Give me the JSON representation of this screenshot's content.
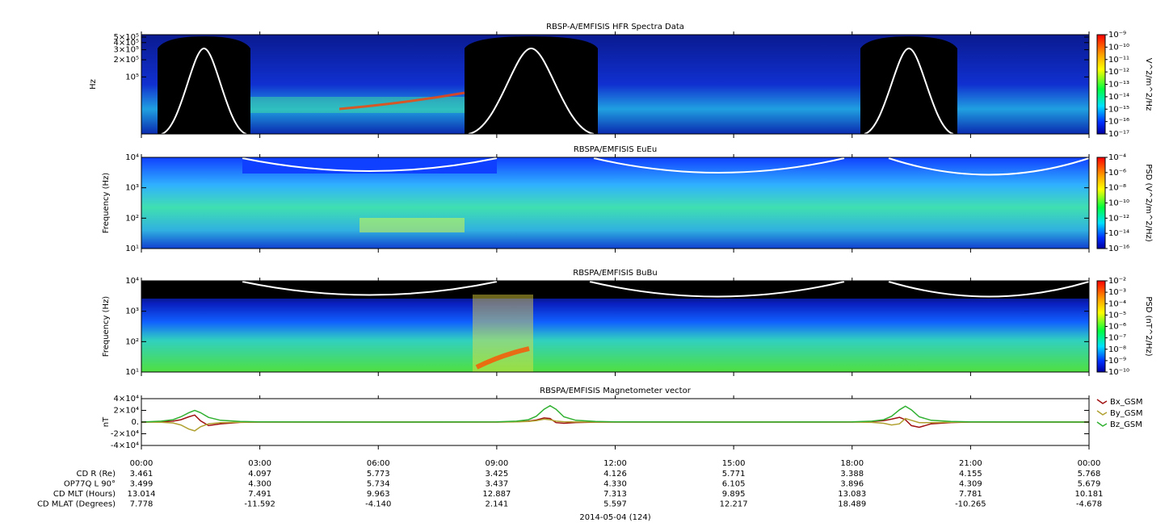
{
  "chart_data": [
    {
      "type": "spectrogram",
      "title": "RBSP-A/EMFISIS  HFR Spectra Data",
      "ylabel": "Hz",
      "log_y": true,
      "ylim": [
        10000,
        550000
      ],
      "yticks": [
        {
          "value": 100000,
          "label": "10⁵"
        },
        {
          "value": 200000,
          "label": "2×10⁵"
        },
        {
          "value": 300000,
          "label": "3×10⁵"
        },
        {
          "value": 400000,
          "label": "4×10⁵"
        },
        {
          "value": 500000,
          "label": "5×10⁵"
        }
      ],
      "colorbar": {
        "label": "V^2/m^2/Hz",
        "log": true,
        "lim": [
          1e-17,
          1e-09
        ],
        "ticks": [
          {
            "value": 1e-09,
            "label": "10⁻⁹"
          },
          {
            "value": 1e-10,
            "label": "10⁻¹⁰"
          },
          {
            "value": 1e-11,
            "label": "10⁻¹¹"
          },
          {
            "value": 1e-12,
            "label": "10⁻¹²"
          },
          {
            "value": 1e-13,
            "label": "10⁻¹³"
          },
          {
            "value": 1e-14,
            "label": "10⁻¹⁴"
          },
          {
            "value": 1e-15,
            "label": "10⁻¹⁵"
          },
          {
            "value": 1e-16,
            "label": "10⁻¹⁶"
          },
          {
            "value": 1e-17,
            "label": "10⁻¹⁷"
          }
        ]
      }
    },
    {
      "type": "spectrogram",
      "title": "RBSPA/EMFISIS  EuEu",
      "ylabel": "Frequency (Hz)",
      "log_y": true,
      "ylim": [
        10,
        10000
      ],
      "yticks": [
        {
          "value": 10,
          "label": "10¹"
        },
        {
          "value": 100,
          "label": "10²"
        },
        {
          "value": 1000,
          "label": "10³"
        },
        {
          "value": 10000,
          "label": "10⁴"
        }
      ],
      "colorbar": {
        "label": "PSD (V^2/m^2/Hz)",
        "log": true,
        "lim": [
          1e-16,
          0.0001
        ],
        "ticks": [
          {
            "value": 0.0001,
            "label": "10⁻⁴"
          },
          {
            "value": 1e-06,
            "label": "10⁻⁶"
          },
          {
            "value": 1e-08,
            "label": "10⁻⁸"
          },
          {
            "value": 1e-10,
            "label": "10⁻¹⁰"
          },
          {
            "value": 1e-12,
            "label": "10⁻¹²"
          },
          {
            "value": 1e-14,
            "label": "10⁻¹⁴"
          },
          {
            "value": 1e-16,
            "label": "10⁻¹⁶"
          }
        ]
      }
    },
    {
      "type": "spectrogram",
      "title": "RBSPA/EMFISIS  BuBu",
      "ylabel": "Frequency (Hz)",
      "log_y": true,
      "ylim": [
        10,
        10000
      ],
      "yticks": [
        {
          "value": 10,
          "label": "10¹"
        },
        {
          "value": 100,
          "label": "10²"
        },
        {
          "value": 1000,
          "label": "10³"
        },
        {
          "value": 10000,
          "label": "10⁴"
        }
      ],
      "colorbar": {
        "label": "PSD (nT^2/Hz)",
        "log": true,
        "lim": [
          1e-10,
          0.01
        ],
        "ticks": [
          {
            "value": 0.01,
            "label": "10⁻²"
          },
          {
            "value": 0.001,
            "label": "10⁻³"
          },
          {
            "value": 0.0001,
            "label": "10⁻⁴"
          },
          {
            "value": 1e-05,
            "label": "10⁻⁵"
          },
          {
            "value": 1e-06,
            "label": "10⁻⁶"
          },
          {
            "value": 1e-07,
            "label": "10⁻⁷"
          },
          {
            "value": 1e-08,
            "label": "10⁻⁸"
          },
          {
            "value": 1e-09,
            "label": "10⁻⁹"
          },
          {
            "value": 1e-10,
            "label": "10⁻¹⁰"
          }
        ]
      }
    },
    {
      "type": "line",
      "title": "RBSPA/EMFISIS  Magnetometer vector",
      "ylabel": "nT",
      "ylim": [
        -40000,
        40000
      ],
      "yticks": [
        {
          "value": -40000,
          "label": "-4×10⁴"
        },
        {
          "value": -20000,
          "label": "-2×10⁴"
        },
        {
          "value": 0,
          "label": "0."
        },
        {
          "value": 20000,
          "label": "2×10⁴"
        },
        {
          "value": 40000,
          "label": "4×10⁴"
        }
      ],
      "xlim": [
        0,
        24
      ],
      "xticks": [
        {
          "value": 0,
          "label": "00:00"
        },
        {
          "value": 3,
          "label": "03:00"
        },
        {
          "value": 6,
          "label": "06:00"
        },
        {
          "value": 9,
          "label": "09:00"
        },
        {
          "value": 12,
          "label": "12:00"
        },
        {
          "value": 15,
          "label": "15:00"
        },
        {
          "value": 18,
          "label": "18:00"
        },
        {
          "value": 21,
          "label": "21:00"
        },
        {
          "value": 24,
          "label": "00:00"
        }
      ],
      "x": [
        0,
        0.5,
        0.8,
        1.0,
        1.2,
        1.35,
        1.5,
        1.7,
        2.0,
        2.5,
        3,
        6,
        9,
        9.5,
        9.8,
        10.0,
        10.2,
        10.35,
        10.5,
        10.7,
        11.0,
        11.5,
        12,
        15,
        18,
        18.5,
        18.8,
        19.0,
        19.2,
        19.35,
        19.5,
        19.7,
        20.0,
        20.5,
        21,
        24
      ],
      "series": [
        {
          "name": "Bx_GSM",
          "color": "#a01010",
          "values": [
            0,
            500,
            1500,
            4000,
            9000,
            12000,
            2000,
            -6000,
            -3000,
            -500,
            0,
            0,
            0,
            500,
            1500,
            3500,
            7000,
            6000,
            -1000,
            -2000,
            -800,
            -200,
            0,
            0,
            0,
            800,
            2500,
            5000,
            8000,
            4000,
            -6000,
            -9000,
            -3000,
            -800,
            0,
            0
          ]
        },
        {
          "name": "By_GSM",
          "color": "#b0a030",
          "values": [
            0,
            -300,
            -1500,
            -5000,
            -12000,
            -15000,
            -8000,
            -3000,
            -1000,
            -300,
            0,
            0,
            0,
            300,
            1000,
            2500,
            5000,
            4000,
            1500,
            500,
            200,
            0,
            0,
            0,
            0,
            -500,
            -2000,
            -5000,
            -3000,
            6000,
            3000,
            -1000,
            -1000,
            -300,
            0,
            0
          ]
        },
        {
          "name": "Bz_GSM",
          "color": "#30b030",
          "values": [
            0,
            1500,
            4000,
            9000,
            16000,
            20000,
            16000,
            8000,
            3000,
            1000,
            300,
            0,
            300,
            1500,
            4000,
            10000,
            22000,
            28000,
            22000,
            9000,
            3000,
            1000,
            300,
            0,
            300,
            1500,
            4000,
            10000,
            21000,
            27000,
            21000,
            9000,
            3000,
            1000,
            300,
            0
          ]
        }
      ]
    }
  ],
  "ephemeris": {
    "rows": [
      {
        "label": "CD R (Re)",
        "values": [
          "3.461",
          "4.097",
          "5.773",
          "3.425",
          "4.126",
          "5.771",
          "3.388",
          "4.155",
          "5.768"
        ]
      },
      {
        "label": "OP77Q L 90°",
        "values": [
          "3.499",
          "4.300",
          "5.734",
          "3.437",
          "4.330",
          "6.105",
          "3.896",
          "4.309",
          "5.679"
        ]
      },
      {
        "label": "CD MLT (Hours)",
        "values": [
          "13.014",
          "7.491",
          "9.963",
          "12.887",
          "7.313",
          "9.895",
          "13.083",
          "7.781",
          "10.181"
        ]
      },
      {
        "label": "CD MLAT (Degrees)",
        "values": [
          "7.778",
          "-11.592",
          "-4.140",
          "2.141",
          "5.597",
          "12.217",
          "18.489",
          "-10.265",
          "-4.678"
        ]
      }
    ],
    "date": "2014-05-04 (124)"
  }
}
